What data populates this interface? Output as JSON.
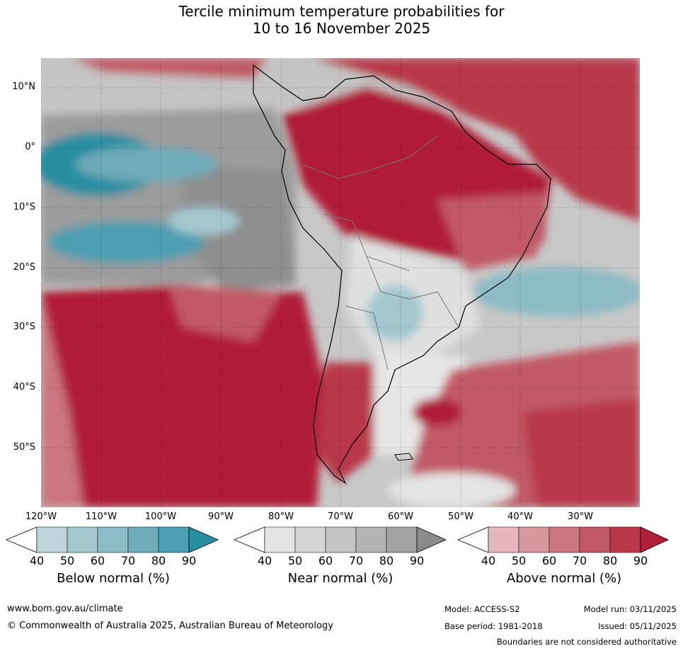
{
  "title_line1": "Tercile minimum temperature probabilities for",
  "title_line2": "10 to 16 November 2025",
  "lat_labels": [
    "10°N",
    "0°",
    "10°S",
    "20°S",
    "30°S",
    "40°S",
    "50°S"
  ],
  "lon_labels": [
    "120°W",
    "110°W",
    "100°W",
    "90°W",
    "80°W",
    "70°W",
    "60°W",
    "50°W",
    "40°W",
    "30°W"
  ],
  "legends": [
    {
      "title": "Below normal (%)",
      "ticks": [
        "40",
        "50",
        "60",
        "70",
        "80",
        "90"
      ],
      "colors": [
        "#bcd4da",
        "#a4c7cf",
        "#8dbbc5",
        "#6eacba",
        "#4b9fb0",
        "#2a8ea3"
      ]
    },
    {
      "title": "Near normal (%)",
      "ticks": [
        "40",
        "50",
        "60",
        "70",
        "80",
        "90"
      ],
      "colors": [
        "#e4e4e4",
        "#d4d4d4",
        "#c4c4c4",
        "#b4b4b4",
        "#a2a2a2",
        "#8a8a8a"
      ]
    },
    {
      "title": "Above normal (%)",
      "ticks": [
        "40",
        "50",
        "60",
        "70",
        "80",
        "90"
      ],
      "colors": [
        "#e4b7bc",
        "#d7979f",
        "#cb7680",
        "#c15a66",
        "#b8384a",
        "#b01e37"
      ]
    }
  ],
  "footer": {
    "website": "www.bom.gov.au/climate",
    "copyright": "© Commonwealth of Australia 2025, Australian Bureau of Meteorology",
    "model": "Model: ACCESS-S2",
    "base_period": "Base period: 1981-2018",
    "model_run": "Model run: 03/11/2025",
    "issued": "Issued: 05/11/2025",
    "disclaimer": "Boundaries are not considered authoritative"
  }
}
